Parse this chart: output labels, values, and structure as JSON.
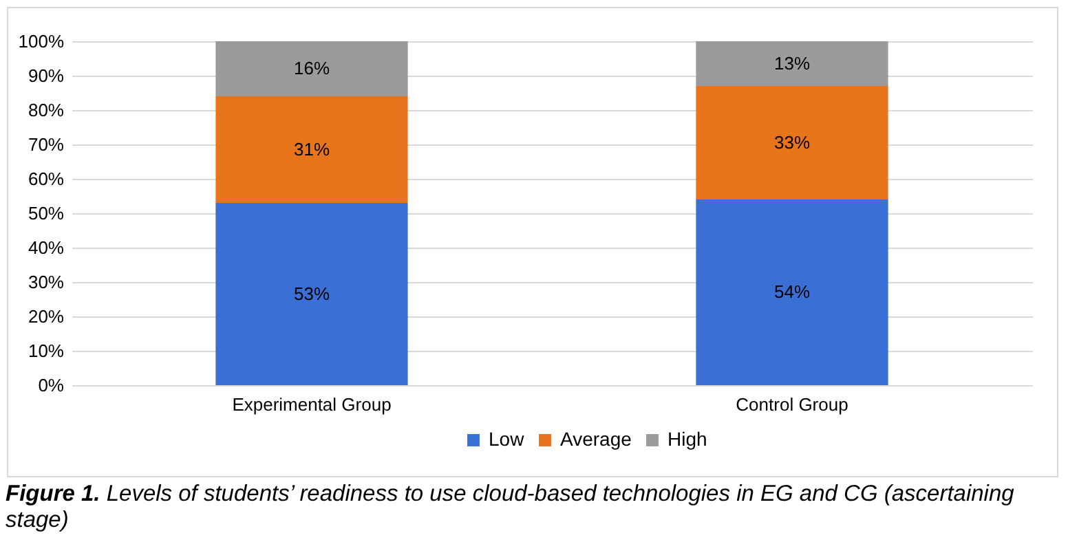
{
  "chart_data": {
    "type": "bar",
    "stacked": true,
    "categories": [
      "Experimental Group",
      "Control Group"
    ],
    "series": [
      {
        "name": "Low",
        "color": "#3a6fd6",
        "values": [
          53,
          54
        ],
        "value_labels": [
          "53%",
          "54%"
        ]
      },
      {
        "name": "Average",
        "color": "#e8741c",
        "values": [
          31,
          33
        ],
        "value_labels": [
          "31%",
          "33%"
        ]
      },
      {
        "name": "High",
        "color": "#9b9b9b",
        "values": [
          16,
          13
        ],
        "value_labels": [
          "16%",
          "13%"
        ]
      }
    ],
    "ylim": [
      0,
      100
    ],
    "yticks": [
      {
        "value": 0,
        "label": "0%"
      },
      {
        "value": 10,
        "label": "10%"
      },
      {
        "value": 20,
        "label": "20%"
      },
      {
        "value": 30,
        "label": "30%"
      },
      {
        "value": 40,
        "label": "40%"
      },
      {
        "value": 50,
        "label": "50%"
      },
      {
        "value": 60,
        "label": "60%"
      },
      {
        "value": 70,
        "label": "70%"
      },
      {
        "value": 80,
        "label": "80%"
      },
      {
        "value": 90,
        "label": "90%"
      },
      {
        "value": 100,
        "label": "100%"
      }
    ],
    "grid": "y",
    "legend": "bottom",
    "annotations": [
      "Figure 1. Levels of students’ readiness to use cloud-based technologies in EG and CG (ascertaining stage)"
    ]
  }
}
